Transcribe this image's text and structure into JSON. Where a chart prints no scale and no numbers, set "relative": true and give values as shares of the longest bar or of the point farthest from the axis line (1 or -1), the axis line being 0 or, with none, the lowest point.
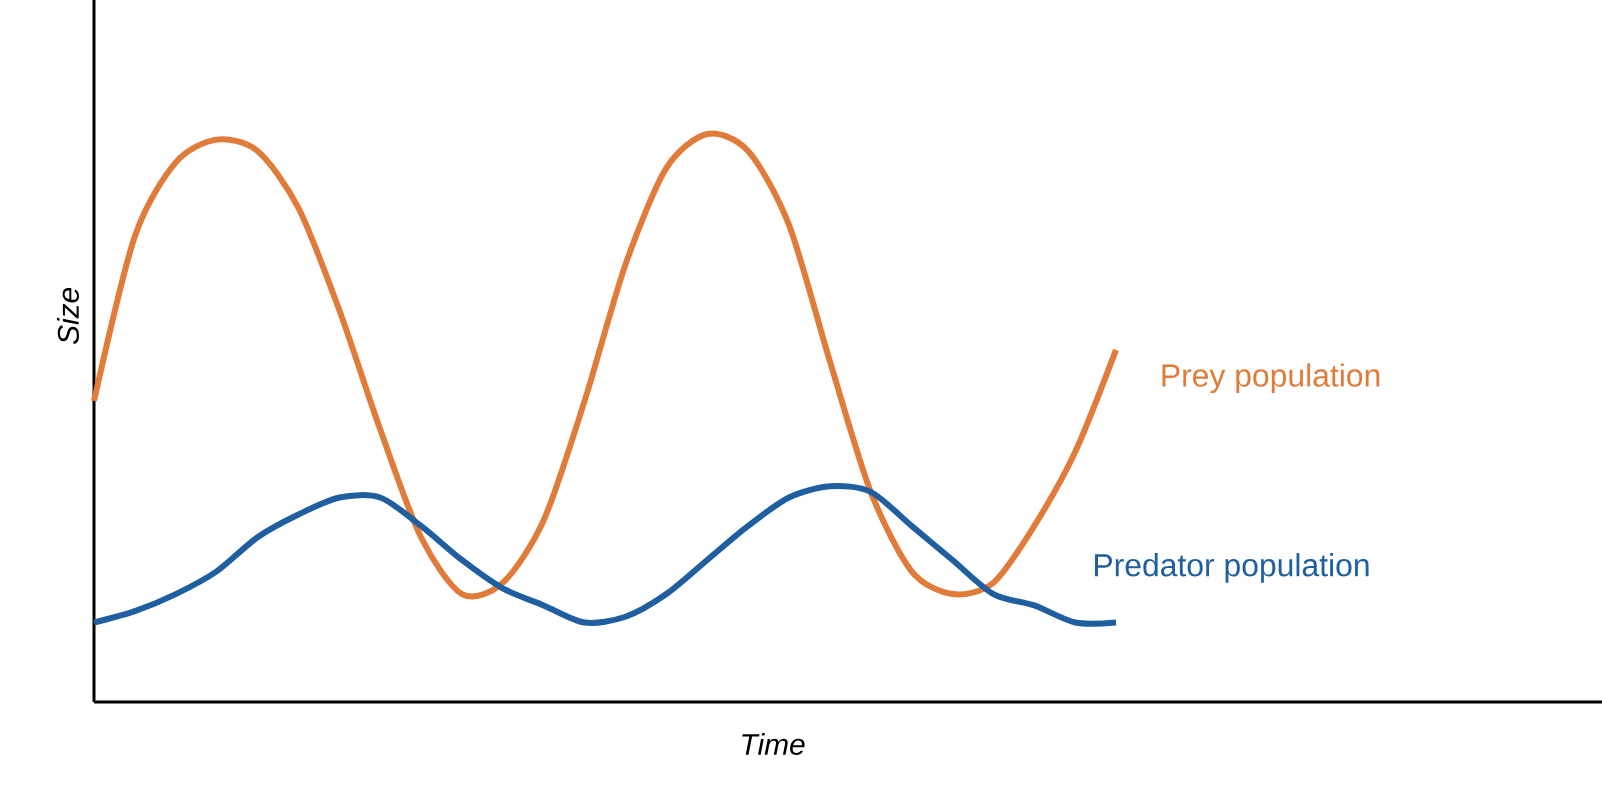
{
  "chart_data": {
    "type": "line",
    "relative": true,
    "xlabel": "Time",
    "ylabel": "Size",
    "categories": [
      null,
      null,
      null,
      null,
      null,
      null,
      null,
      null,
      null,
      null,
      null,
      null,
      null,
      null,
      null,
      null,
      null,
      null,
      null,
      null,
      null,
      null,
      null,
      null,
      null,
      null
    ],
    "series": [
      {
        "name": "Prey population",
        "color": "#e07b39",
        "values": [
          0.53,
          0.82,
          0.95,
          0.99,
          0.97,
          0.87,
          0.69,
          0.48,
          0.29,
          0.19,
          0.21,
          0.32,
          0.53,
          0.77,
          0.94,
          1.0,
          0.97,
          0.84,
          0.6,
          0.37,
          0.23,
          0.19,
          0.21,
          0.31,
          0.44,
          0.62
        ]
      },
      {
        "name": "Predator population",
        "color": "#1f5fa0",
        "values": [
          0.14,
          0.16,
          0.19,
          0.23,
          0.29,
          0.33,
          0.36,
          0.36,
          0.31,
          0.25,
          0.2,
          0.17,
          0.14,
          0.15,
          0.19,
          0.25,
          0.31,
          0.36,
          0.38,
          0.37,
          0.31,
          0.25,
          0.19,
          0.17,
          0.14,
          0.14
        ]
      }
    ]
  }
}
